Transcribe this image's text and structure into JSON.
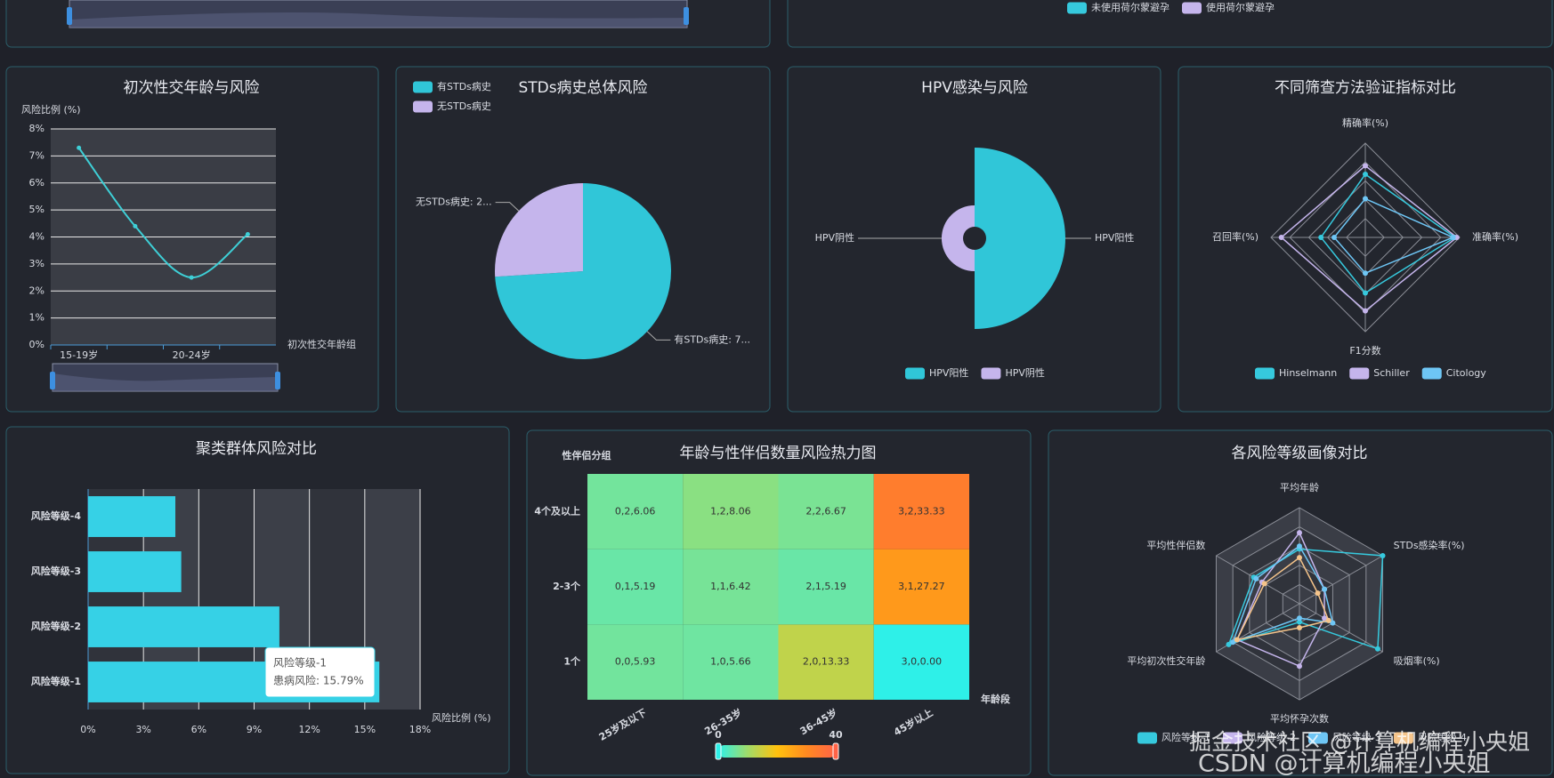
{
  "chart_data": [
    {
      "type": "legend",
      "series": [
        {
          "name": "未使用荷尔蒙避孕",
          "color": "#36c9dd"
        },
        {
          "name": "使用荷尔蒙避孕",
          "color": "#c5b5ec"
        }
      ]
    },
    {
      "type": "line",
      "title": "初次性交年龄与风险",
      "y_label": "风险比例 (%)",
      "x_label": "初次性交年龄组",
      "categories": [
        "15-19岁",
        null,
        "20-24岁",
        null
      ],
      "values": [
        7.3,
        4.4,
        2.5,
        4.1
      ],
      "color": "#3ecfd6",
      "ylim": [
        0,
        8
      ],
      "yticks": [
        {
          "value": 0,
          "label": "0%"
        },
        {
          "value": 1,
          "label": "1%"
        },
        {
          "value": 2,
          "label": "2%"
        },
        {
          "value": 3,
          "label": "3%"
        },
        {
          "value": 4,
          "label": "4%"
        },
        {
          "value": 5,
          "label": "5%"
        },
        {
          "value": 6,
          "label": "6%"
        },
        {
          "value": 7,
          "label": "7%"
        },
        {
          "value": 8,
          "label": "8%"
        }
      ],
      "grid": true,
      "smooth": true
    },
    {
      "type": "pie",
      "title": "STDs病史总体风险",
      "legend": "top-left",
      "categories": [
        "有STDs病史",
        "无STDs病史"
      ],
      "values": [
        74,
        26
      ],
      "value_labels": [
        "有STDs病史: 7...",
        "无STDs病史: 2..."
      ],
      "colors": [
        "#30c6d8",
        "#c5b5ec"
      ]
    },
    {
      "type": "rose",
      "title": "HPV感染与风险",
      "legend": "bottom",
      "categories": [
        "HPV阳性",
        "HPV阴性"
      ],
      "values": [
        100,
        27
      ],
      "colors": [
        "#30c6d8",
        "#c5b5ec"
      ]
    },
    {
      "type": "radar",
      "title": "不同筛查方法验证指标对比",
      "legend": "bottom",
      "indicators": [
        "精确率(%)",
        "准确率(%)",
        "F1分数",
        "召回率(%)"
      ],
      "rlim": [
        0,
        100
      ],
      "series": [
        {
          "name": "Hinselmann",
          "color": "#36c9dd",
          "values": [
            67,
            95,
            59,
            47
          ]
        },
        {
          "name": "Schiller",
          "color": "#c5b5ec",
          "values": [
            76,
            97,
            78,
            89
          ]
        },
        {
          "name": "Citology",
          "color": "#6ec6f5",
          "values": [
            41,
            93,
            38,
            33
          ]
        }
      ]
    },
    {
      "type": "hbar",
      "title": "聚类群体风险对比",
      "x_label": "风险比例 (%)",
      "categories": [
        "风险等级-1",
        "风险等级-2",
        "风险等级-3",
        "风险等级-4"
      ],
      "values": [
        15.79,
        10.37,
        5.05,
        4.73
      ],
      "color": "#36d1e6",
      "xlim": [
        0,
        18
      ],
      "xticks": [
        {
          "value": 0,
          "label": "0%"
        },
        {
          "value": 3,
          "label": "3%"
        },
        {
          "value": 6,
          "label": "6%"
        },
        {
          "value": 9,
          "label": "9%"
        },
        {
          "value": 12,
          "label": "12%"
        },
        {
          "value": 15,
          "label": "15%"
        },
        {
          "value": 18,
          "label": "18%"
        }
      ],
      "grid": true,
      "tooltip": {
        "title": "风险等级-1",
        "text": "患病风险: 15.79%"
      }
    },
    {
      "type": "heatmap",
      "title": "年龄与性伴侣数量风险热力图",
      "x_label": "年龄段",
      "y_label": "性伴侣分组",
      "x_categories": [
        "25岁及以下",
        "26-35岁",
        "36-45岁",
        "45岁以上"
      ],
      "y_categories": [
        "1个",
        "2-3个",
        "4个及以上"
      ],
      "data": [
        [
          0,
          0,
          5.93
        ],
        [
          1,
          0,
          5.66
        ],
        [
          2,
          0,
          13.33
        ],
        [
          3,
          0,
          0.0
        ],
        [
          0,
          1,
          5.19
        ],
        [
          1,
          1,
          6.42
        ],
        [
          2,
          1,
          5.19
        ],
        [
          3,
          1,
          27.27
        ],
        [
          0,
          2,
          6.06
        ],
        [
          1,
          2,
          8.06
        ],
        [
          2,
          2,
          6.67
        ],
        [
          3,
          2,
          33.33
        ]
      ],
      "value_labels": [
        "0,0,5.93",
        "1,0,5.66",
        "2,0,13.33",
        "3,0,0.00",
        "0,1,5.19",
        "1,1,6.42",
        "2,1,5.19",
        "3,1,27.27",
        "0,2,6.06",
        "1,2,8.06",
        "2,2,6.67",
        "3,2,33.33"
      ],
      "visual_map": {
        "range": [
          0,
          40
        ],
        "colors": [
          "#2ef0e8",
          "#a0dc6a",
          "#ffc20e",
          "#ff8a20",
          "#ff6347"
        ]
      }
    },
    {
      "type": "radar",
      "title": "各风险等级画像对比",
      "legend": "bottom",
      "indicators": [
        "平均年龄",
        "STDs感染率(%)",
        "吸烟率(%)",
        "平均怀孕次数",
        "平均初次性交年龄",
        "平均性伴侣数"
      ],
      "rlim": [
        0,
        100
      ],
      "split_area": true,
      "series": [
        {
          "name": "风险等级-1",
          "color": "#36c9dd",
          "values": [
            57,
            100,
            94,
            19,
            85,
            55
          ]
        },
        {
          "name": "风险等级-2",
          "color": "#c5b5ec",
          "values": [
            74,
            30,
            30,
            65,
            75,
            45
          ]
        },
        {
          "name": "风险等级-3",
          "color": "#6ec6f5",
          "values": [
            60,
            30,
            40,
            15,
            80,
            52
          ]
        },
        {
          "name": "风险等级-4",
          "color": "#f5c48a",
          "values": [
            48,
            22,
            35,
            25,
            75,
            42
          ]
        }
      ]
    }
  ],
  "watermark": [
    "掘金技术社区 @计算机编程小央姐",
    "CSDN @计算机编程小央姐"
  ]
}
